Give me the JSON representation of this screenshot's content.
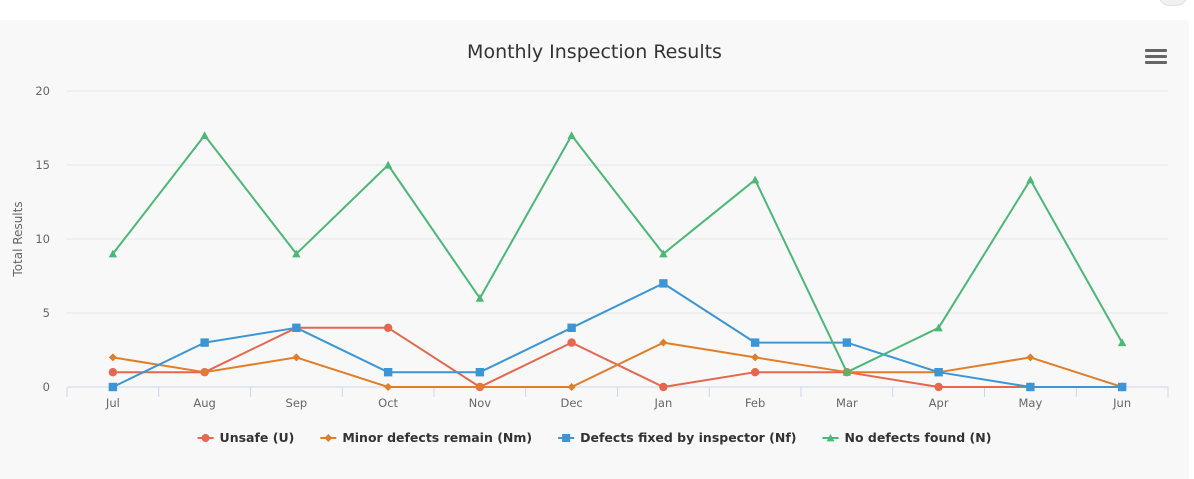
{
  "chart_data": {
    "type": "line",
    "title": "Monthly Inspection Results",
    "xlabel": "",
    "ylabel": "Total Results",
    "categories": [
      "Jul",
      "Aug",
      "Sep",
      "Oct",
      "Nov",
      "Dec",
      "Jan",
      "Feb",
      "Mar",
      "Apr",
      "May",
      "Jun"
    ],
    "ylim": [
      0,
      20
    ],
    "yticks": [
      0,
      5,
      10,
      15,
      20
    ],
    "grid": true,
    "legend_position": "bottom",
    "series": [
      {
        "name": "Unsafe (U)",
        "color": "#e4674f",
        "marker": "circle",
        "values": [
          1,
          1,
          4,
          4,
          0,
          3,
          0,
          1,
          1,
          0,
          0,
          0
        ]
      },
      {
        "name": "Minor defects remain (Nm)",
        "color": "#e07e2a",
        "marker": "diamond",
        "values": [
          2,
          1,
          2,
          0,
          0,
          0,
          3,
          2,
          1,
          1,
          2,
          0
        ]
      },
      {
        "name": "Defects fixed by inspector (Nf)",
        "color": "#3c96d6",
        "marker": "square",
        "values": [
          0,
          3,
          4,
          1,
          1,
          4,
          7,
          3,
          3,
          1,
          0,
          0
        ]
      },
      {
        "name": "No defects found (N)",
        "color": "#4cb877",
        "marker": "triangle",
        "values": [
          9,
          17,
          9,
          15,
          6,
          17,
          9,
          14,
          1,
          4,
          14,
          3
        ]
      }
    ]
  },
  "menu_icon": "hamburger-menu-icon"
}
